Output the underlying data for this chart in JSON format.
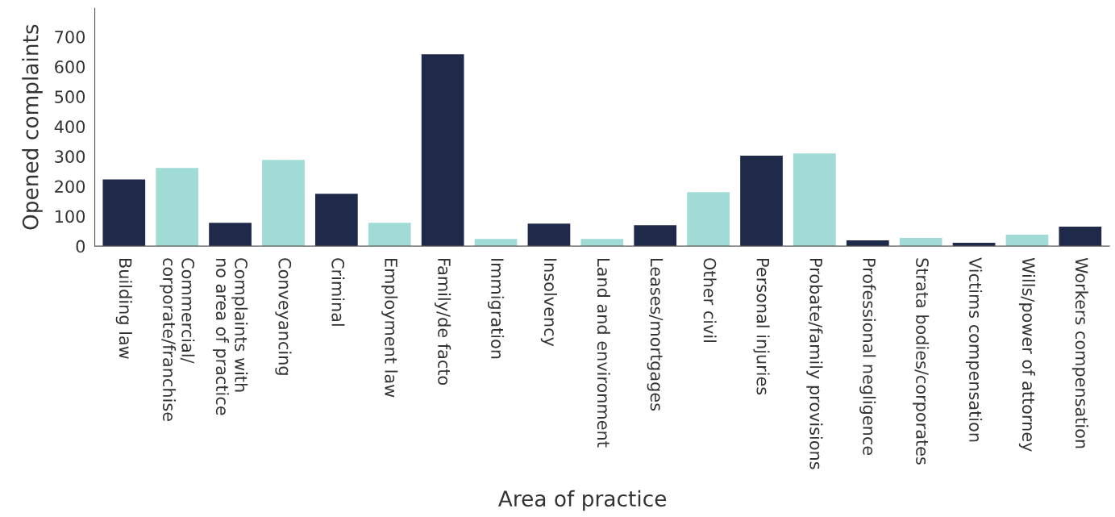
{
  "chart_data": {
    "type": "bar",
    "xlabel": "Area of practice",
    "ylabel": "Opened complaints",
    "categories": [
      "Building law",
      "Commercial/\ncorporate/franchise",
      "Complaints with\nno area of practice",
      "Conveyancing",
      "Criminal",
      "Employment law",
      "Family/de facto",
      "Immigration",
      "Insolvency",
      "Land and environment",
      "Leases/mortgages",
      "Other civil",
      "Personal injuries",
      "Probate/family provisions",
      "Professional negligence",
      "Strata bodies/corporates",
      "Victims compensation",
      "Wills/power of attorney",
      "Workers compensation"
    ],
    "values": [
      223,
      261,
      78,
      288,
      175,
      78,
      641,
      24,
      75,
      24,
      70,
      180,
      302,
      310,
      19,
      27,
      11,
      38,
      65
    ],
    "colors": [
      "#1f2a4a",
      "#a1dbd6",
      "#1f2a4a",
      "#a1dbd6",
      "#1f2a4a",
      "#a1dbd6",
      "#1f2a4a",
      "#a1dbd6",
      "#1f2a4a",
      "#a1dbd6",
      "#1f2a4a",
      "#a1dbd6",
      "#1f2a4a",
      "#a1dbd6",
      "#1f2a4a",
      "#a1dbd6",
      "#1f2a4a",
      "#a1dbd6",
      "#1f2a4a"
    ],
    "ylim": [
      0,
      795
    ],
    "yticks": [
      0,
      100,
      200,
      300,
      400,
      500,
      600,
      700
    ],
    "grid": false,
    "legend": false
  }
}
